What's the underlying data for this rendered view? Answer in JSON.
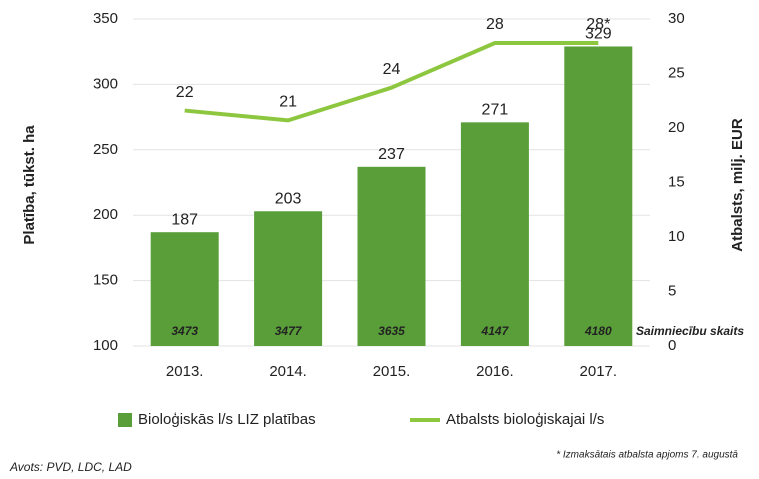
{
  "chart_data": {
    "type": "bar_line",
    "categories": [
      "2013.",
      "2014.",
      "2015.",
      "2016.",
      "2017."
    ],
    "series": [
      {
        "name": "Bioloģiskās l/s LIZ platības",
        "type": "bar",
        "color": "#5a9e3a",
        "values": [
          187,
          203,
          237,
          271,
          329
        ]
      },
      {
        "name": "Atbalsts bioloģiskajai l/s",
        "type": "line",
        "axis": "y2",
        "color": "#8dc63f",
        "values": [
          21.6,
          20.7,
          23.7,
          27.8,
          27.8
        ],
        "value_labels": [
          "22",
          "21",
          "24",
          "28",
          "28*"
        ]
      }
    ],
    "farm_counts": {
      "label": "Saimniecību skaits",
      "values": [
        "3473",
        "3477",
        "3635",
        "4147",
        "4180"
      ]
    },
    "ylabel": "Platība, tūkst. ha",
    "y2label": "Atbalsts, milj. EUR",
    "ylim": [
      100,
      350
    ],
    "yticks": [
      100,
      150,
      200,
      250,
      300,
      350
    ],
    "y2lim": [
      0,
      30
    ],
    "y2ticks": [
      0,
      5,
      10,
      15,
      20,
      25,
      30
    ],
    "grid": true,
    "legend": "bottom",
    "footnote": "* Izmaksātais atbalsta apjoms 7. augustā",
    "source": "Avots: PVD, LDC, LAD"
  }
}
